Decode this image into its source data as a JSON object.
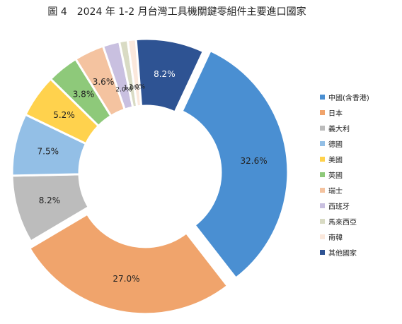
{
  "chart_data": {
    "type": "pie",
    "title": "圖 4　2024 年 1-2 月台灣工具機關鍵零組件主要進口國家",
    "categories": [
      "中國(含香港)",
      "日本",
      "義大利",
      "德國",
      "美國",
      "英國",
      "瑞士",
      "西班牙",
      "馬來西亞",
      "南韓",
      "其他國家"
    ],
    "values": [
      32.6,
      27.0,
      8.2,
      7.5,
      5.2,
      3.8,
      3.6,
      2.0,
      1.0,
      1.0,
      8.2
    ],
    "labels": [
      "32.6%",
      "27.0%",
      "8.2%",
      "7.5%",
      "5.2%",
      "3.8%",
      "3.6%",
      "2.0%",
      "1.0%",
      "1.0%",
      "8.2%"
    ],
    "colors": [
      "#4a8fd2",
      "#f0a46c",
      "#bcbcbc",
      "#93bfe6",
      "#ffd24d",
      "#8ec97a",
      "#f4c3a0",
      "#c9c0e0",
      "#d9dbc4",
      "#fbe8dc",
      "#2e5393"
    ],
    "label_colors": [
      "#222222",
      "#222222",
      "#222222",
      "#222222",
      "#222222",
      "#222222",
      "#222222",
      "#222222",
      "#222222",
      "#222222",
      "#ffffff"
    ],
    "donut": true,
    "exploded": [
      "中國(含香港)",
      "日本"
    ],
    "legend_position": "right"
  }
}
